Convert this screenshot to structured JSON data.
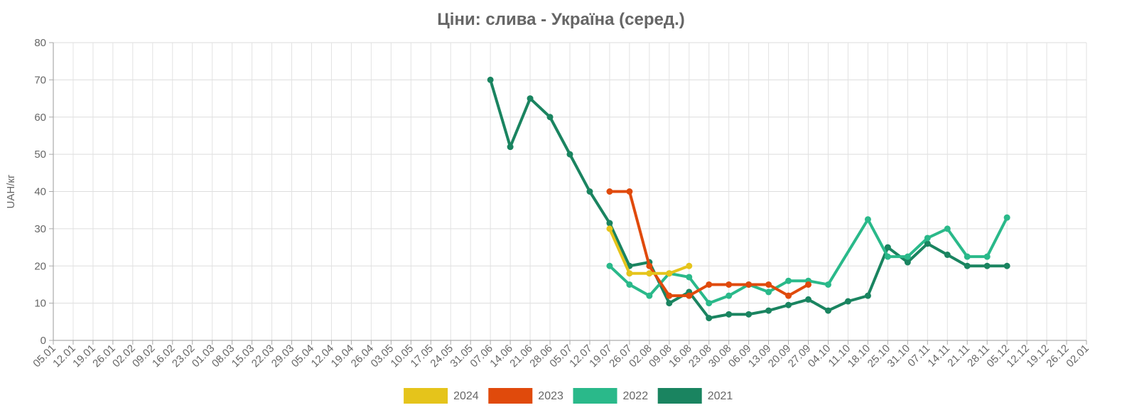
{
  "chart_data": {
    "type": "line",
    "title": "Ціни: слива - Україна (серед.)",
    "xlabel": "",
    "ylabel": "UAH/кг",
    "ylim": [
      0,
      80
    ],
    "y_ticks": [
      0,
      10,
      20,
      30,
      40,
      50,
      60,
      70,
      80
    ],
    "grid": true,
    "legend_position": "bottom",
    "categories": [
      "05.01",
      "12.01",
      "19.01",
      "26.01",
      "02.02",
      "09.02",
      "16.02",
      "23.02",
      "01.03",
      "08.03",
      "15.03",
      "22.03",
      "29.03",
      "05.04",
      "12.04",
      "19.04",
      "26.04",
      "03.05",
      "10.05",
      "17.05",
      "24.05",
      "31.05",
      "07.06",
      "14.06",
      "21.06",
      "28.06",
      "05.07",
      "12.07",
      "19.07",
      "26.07",
      "02.08",
      "09.08",
      "16.08",
      "23.08",
      "30.08",
      "06.09",
      "13.09",
      "20.09",
      "27.09",
      "04.10",
      "11.10",
      "18.10",
      "25.10",
      "31.10",
      "07.11",
      "14.11",
      "21.11",
      "28.11",
      "05.12",
      "12.12",
      "19.12",
      "26.12",
      "02.01"
    ],
    "series": [
      {
        "name": "2024",
        "color": "#e5c41b",
        "points": [
          [
            28,
            30
          ],
          [
            29,
            18
          ],
          [
            30,
            18
          ],
          [
            31,
            18
          ],
          [
            32,
            20
          ]
        ]
      },
      {
        "name": "2023",
        "color": "#e04a0c",
        "points": [
          [
            28,
            40
          ],
          [
            29,
            40
          ],
          [
            30,
            20
          ],
          [
            31,
            12
          ],
          [
            32,
            12
          ],
          [
            33,
            15
          ],
          [
            34,
            15
          ],
          [
            35,
            15
          ],
          [
            36,
            15
          ],
          [
            37,
            12
          ],
          [
            38,
            15
          ]
        ]
      },
      {
        "name": "2022",
        "color": "#2ab98a",
        "points": [
          [
            28,
            20
          ],
          [
            29,
            15
          ],
          [
            30,
            12
          ],
          [
            31,
            18
          ],
          [
            32,
            17
          ],
          [
            33,
            10
          ],
          [
            34,
            12
          ],
          [
            35,
            15
          ],
          [
            36,
            13
          ],
          [
            37,
            16
          ],
          [
            38,
            16
          ],
          [
            39,
            15
          ],
          [
            41,
            32.5
          ],
          [
            42,
            22.5
          ],
          [
            43,
            22.5
          ],
          [
            44,
            27.5
          ],
          [
            45,
            30
          ],
          [
            46,
            22.5
          ],
          [
            47,
            22.5
          ],
          [
            48,
            33
          ]
        ]
      },
      {
        "name": "2021",
        "color": "#1a8460",
        "points": [
          [
            22,
            70
          ],
          [
            23,
            52
          ],
          [
            24,
            65
          ],
          [
            25,
            60
          ],
          [
            26,
            50
          ],
          [
            27,
            40
          ],
          [
            28,
            31.5
          ],
          [
            29,
            20
          ],
          [
            30,
            21
          ],
          [
            31,
            10
          ],
          [
            32,
            13
          ],
          [
            33,
            6
          ],
          [
            34,
            7
          ],
          [
            35,
            7
          ],
          [
            36,
            8
          ],
          [
            37,
            9.5
          ],
          [
            38,
            11
          ],
          [
            39,
            8
          ],
          [
            40,
            10.5
          ],
          [
            41,
            12
          ],
          [
            42,
            25
          ],
          [
            43,
            21
          ],
          [
            44,
            26
          ],
          [
            45,
            23
          ],
          [
            46,
            20
          ],
          [
            47,
            20
          ],
          [
            48,
            20
          ]
        ]
      }
    ]
  }
}
